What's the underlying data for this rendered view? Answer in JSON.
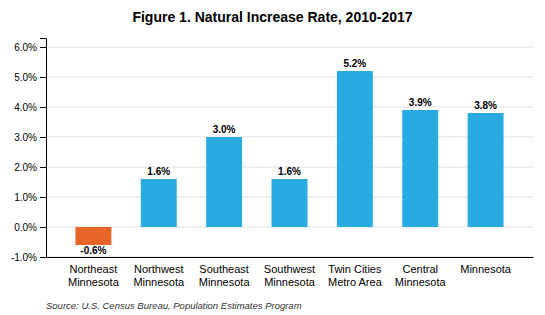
{
  "chart_data": {
    "type": "bar",
    "title": "Figure 1. Natural Increase Rate, 2010-2017",
    "categories": [
      "Northeast\nMinnesota",
      "Northwest\nMinnesota",
      "Southeast\nMinnesota",
      "Southwest\nMinnesota",
      "Twin Cities\nMetro Area",
      "Central\nMinnesota",
      "Minnesota"
    ],
    "values": [
      -0.6,
      1.6,
      3.0,
      1.6,
      5.2,
      3.9,
      3.8
    ],
    "value_labels": [
      "-0.6%",
      "1.6%",
      "3.0%",
      "1.6%",
      "5.2%",
      "3.9%",
      "3.8%"
    ],
    "colors": [
      "#E8652A",
      "#29ABE2",
      "#29ABE2",
      "#29ABE2",
      "#29ABE2",
      "#29ABE2",
      "#29ABE2"
    ],
    "ylim": [
      -1.0,
      6.3
    ],
    "yticks": [
      {
        "value": -1.0,
        "label": "-1.0%"
      },
      {
        "value": 0.0,
        "label": "0.0%"
      },
      {
        "value": 1.0,
        "label": "1.0%"
      },
      {
        "value": 2.0,
        "label": "2.0%"
      },
      {
        "value": 3.0,
        "label": "3.0%"
      },
      {
        "value": 4.0,
        "label": "4.0%"
      },
      {
        "value": 5.0,
        "label": "5.0%"
      },
      {
        "value": 6.0,
        "label": "6.0%"
      }
    ],
    "grid": true,
    "data_labels": true,
    "annotations": [
      "Source: U.S. Census Bureau, Population Estimates Program"
    ]
  }
}
